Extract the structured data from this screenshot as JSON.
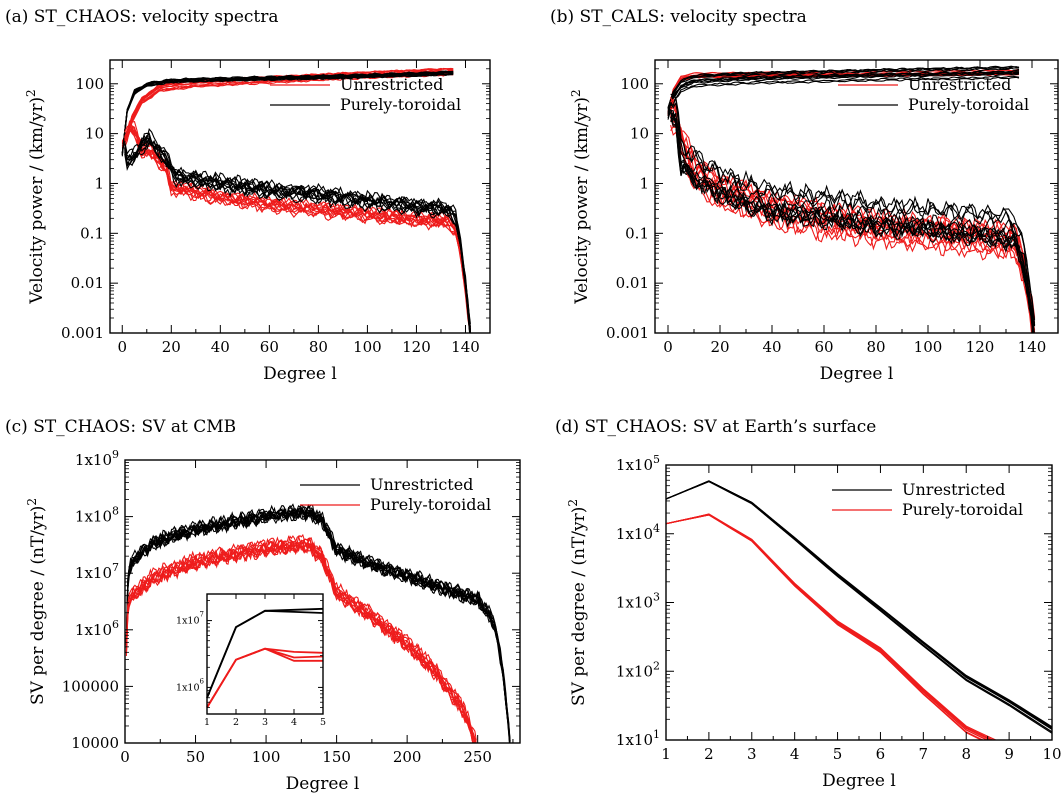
{
  "colors": {
    "black": "#000000",
    "red": "#ee1c1c"
  },
  "chart_data": [
    {
      "id": "a",
      "type": "line",
      "title": "(a) ST_CHAOS: velocity spectra",
      "xlabel": "Degree l",
      "ylabel": "Velocity power / (km/yr)",
      "ylabel_sup": "2",
      "xscale": "linear",
      "yscale": "log",
      "xlim": [
        -5,
        150
      ],
      "ylim": [
        0.001,
        300
      ],
      "xticks": [
        0,
        20,
        40,
        60,
        80,
        100,
        120,
        140
      ],
      "yticks": [
        0.001,
        0.01,
        0.1,
        1,
        10,
        100
      ],
      "ytick_labels": [
        "0.001",
        "0.01",
        "0.1",
        "1",
        "10",
        "100"
      ],
      "grid": false,
      "legend_position": "top-right",
      "legend": [
        {
          "label": "Unrestricted",
          "color": "red"
        },
        {
          "label": "Purely-toroidal",
          "color": "black"
        }
      ],
      "series": [
        {
          "group": "red",
          "count": 11,
          "spread": 0.07,
          "cumulative": [
            [
              0,
              6
            ],
            [
              2,
              9
            ],
            [
              4,
              20
            ],
            [
              8,
              45
            ],
            [
              15,
              80
            ],
            [
              30,
              100
            ],
            [
              60,
              120
            ],
            [
              100,
              150
            ],
            [
              135,
              175
            ]
          ],
          "noise": 0.02
        },
        {
          "group": "black",
          "count": 11,
          "spread": 0.05,
          "cumulative": [
            [
              0,
              4
            ],
            [
              2,
              30
            ],
            [
              5,
              70
            ],
            [
              10,
              100
            ],
            [
              20,
              118
            ],
            [
              40,
              128
            ],
            [
              80,
              140
            ],
            [
              120,
              160
            ],
            [
              135,
              172
            ]
          ],
          "noise": 0.02
        },
        {
          "group": "red",
          "count": 11,
          "spread": 0.12,
          "spectrum": [
            [
              1,
              8
            ],
            [
              3,
              14
            ],
            [
              5,
              12
            ],
            [
              8,
              5
            ],
            [
              12,
              4.5
            ],
            [
              18,
              2
            ],
            [
              20,
              0.9
            ],
            [
              40,
              0.55
            ],
            [
              60,
              0.4
            ],
            [
              80,
              0.32
            ],
            [
              100,
              0.25
            ],
            [
              120,
              0.2
            ],
            [
              133,
              0.18
            ],
            [
              136,
              0.12
            ],
            [
              138,
              0.04
            ],
            [
              140,
              0.008
            ],
            [
              142,
              0.001
            ]
          ],
          "noise": 0.12
        },
        {
          "group": "black",
          "count": 11,
          "spread": 0.1,
          "spectrum": [
            [
              1,
              5.5
            ],
            [
              2,
              2.8
            ],
            [
              5,
              3.5
            ],
            [
              8,
              6
            ],
            [
              11,
              8
            ],
            [
              14,
              5
            ],
            [
              18,
              3
            ],
            [
              22,
              1.4
            ],
            [
              40,
              1.0
            ],
            [
              60,
              0.75
            ],
            [
              80,
              0.6
            ],
            [
              100,
              0.45
            ],
            [
              120,
              0.35
            ],
            [
              133,
              0.3
            ],
            [
              136,
              0.2
            ],
            [
              138,
              0.06
            ],
            [
              140,
              0.01
            ],
            [
              142,
              0.001
            ]
          ],
          "noise": 0.14
        }
      ]
    },
    {
      "id": "b",
      "type": "line",
      "title": "(b) ST_CALS: velocity spectra",
      "xlabel": "Degree l",
      "ylabel": "Velocity power / (km/yr)",
      "ylabel_sup": "2",
      "xscale": "linear",
      "yscale": "log",
      "xlim": [
        -5,
        150
      ],
      "ylim": [
        0.001,
        300
      ],
      "xticks": [
        0,
        20,
        40,
        60,
        80,
        100,
        120,
        140
      ],
      "yticks": [
        0.001,
        0.01,
        0.1,
        1,
        10,
        100
      ],
      "ytick_labels": [
        "0.001",
        "0.01",
        "0.1",
        "1",
        "10",
        "100"
      ],
      "grid": false,
      "legend_position": "top-right",
      "legend": [
        {
          "label": "Unrestricted",
          "color": "red"
        },
        {
          "label": "Purely-toroidal",
          "color": "black"
        }
      ],
      "series": [
        {
          "group": "red",
          "count": 11,
          "spread": 0.05,
          "cumulative": [
            [
              0,
              25
            ],
            [
              2,
              70
            ],
            [
              5,
              130
            ],
            [
              10,
              150
            ],
            [
              40,
              155
            ],
            [
              80,
              160
            ],
            [
              135,
              172
            ]
          ],
          "noise": 0.015
        },
        {
          "group": "black",
          "count": 11,
          "spread": 0.12,
          "cumulative": [
            [
              0,
              25
            ],
            [
              2,
              55
            ],
            [
              5,
              90
            ],
            [
              10,
              115
            ],
            [
              30,
              130
            ],
            [
              80,
              150
            ],
            [
              135,
              170
            ]
          ],
          "noise": 0.02
        },
        {
          "group": "red",
          "count": 11,
          "spread": 0.25,
          "spectrum": [
            [
              1,
              25
            ],
            [
              3,
              20
            ],
            [
              6,
              5
            ],
            [
              10,
              1.8
            ],
            [
              20,
              0.7
            ],
            [
              40,
              0.3
            ],
            [
              60,
              0.18
            ],
            [
              80,
              0.13
            ],
            [
              100,
              0.1
            ],
            [
              120,
              0.08
            ],
            [
              133,
              0.07
            ],
            [
              136,
              0.03
            ],
            [
              138,
              0.01
            ],
            [
              140,
              0.002
            ],
            [
              141,
              0.001
            ]
          ],
          "noise": 0.2
        },
        {
          "group": "black",
          "count": 11,
          "spread": 0.3,
          "spectrum": [
            [
              1,
              35
            ],
            [
              3,
              30
            ],
            [
              5,
              4
            ],
            [
              10,
              2.2
            ],
            [
              20,
              1.0
            ],
            [
              40,
              0.45
            ],
            [
              60,
              0.35
            ],
            [
              80,
              0.25
            ],
            [
              100,
              0.2
            ],
            [
              120,
              0.15
            ],
            [
              133,
              0.13
            ],
            [
              136,
              0.05
            ],
            [
              138,
              0.015
            ],
            [
              140,
              0.003
            ],
            [
              141,
              0.001
            ]
          ],
          "noise": 0.22
        }
      ]
    },
    {
      "id": "c",
      "type": "line",
      "title": "(c) ST_CHAOS: SV at CMB",
      "xlabel": "Degree l",
      "ylabel": "SV per degree / (nT/yr)",
      "ylabel_sup": "2",
      "xscale": "linear",
      "yscale": "log",
      "xlim": [
        0,
        280
      ],
      "ylim": [
        10000,
        1000000000
      ],
      "xticks": [
        0,
        50,
        100,
        150,
        200,
        250
      ],
      "yticks": [
        10000,
        100000,
        1000000,
        10000000,
        100000000,
        1000000000
      ],
      "ytick_labels": [
        "10000",
        "100000",
        "1x10^6",
        "1x10^7",
        "1x10^8",
        "1x10^9"
      ],
      "grid": false,
      "legend_position": "top-right",
      "legend": [
        {
          "label": "Unrestricted",
          "color": "black"
        },
        {
          "label": "Purely-toroidal",
          "color": "red"
        }
      ],
      "series": [
        {
          "group": "black",
          "count": 11,
          "spread": 0.12,
          "spectrum": [
            [
              1,
              700000
            ],
            [
              2,
              8000000
            ],
            [
              3,
              14000000
            ],
            [
              8,
              22000000
            ],
            [
              20,
              40000000
            ],
            [
              50,
              70000000
            ],
            [
              100,
              120000000
            ],
            [
              130,
              140000000
            ],
            [
              140,
              100000000
            ],
            [
              150,
              30000000
            ],
            [
              180,
              15000000
            ],
            [
              220,
              7000000
            ],
            [
              250,
              4000000
            ],
            [
              262,
              1500000
            ],
            [
              268,
              200000
            ],
            [
              272,
              20000
            ],
            [
              273,
              10000
            ]
          ],
          "noise": 0.1
        },
        {
          "group": "red",
          "count": 11,
          "spread": 0.12,
          "spectrum": [
            [
              1,
              500000
            ],
            [
              2,
              2500000
            ],
            [
              3,
              3800000
            ],
            [
              8,
              5000000
            ],
            [
              20,
              9000000
            ],
            [
              50,
              17000000
            ],
            [
              100,
              30000000
            ],
            [
              130,
              35000000
            ],
            [
              140,
              20000000
            ],
            [
              150,
              5000000
            ],
            [
              180,
              1500000
            ],
            [
              200,
              600000
            ],
            [
              220,
              200000
            ],
            [
              240,
              40000
            ],
            [
              248,
              12000
            ],
            [
              249,
              10000
            ]
          ],
          "noise": 0.1
        }
      ],
      "inset": {
        "xlim": [
          1,
          5
        ],
        "ylim": [
          400000,
          25000000
        ],
        "xticks": [
          1,
          2,
          3,
          4,
          5
        ],
        "yticks": [
          1000000,
          10000000
        ],
        "ytick_labels": [
          "1x10^6",
          "1x10^7"
        ],
        "lines": [
          {
            "group": "black",
            "points": [
              [
                1,
                700000
              ],
              [
                2,
                8000000
              ],
              [
                3,
                14000000
              ],
              [
                4,
                14500000
              ],
              [
                5,
                15000000
              ]
            ]
          },
          {
            "group": "black",
            "points": [
              [
                1,
                700000
              ],
              [
                2,
                8000000
              ],
              [
                3,
                14000000
              ],
              [
                4,
                13500000
              ],
              [
                5,
                13000000
              ]
            ]
          },
          {
            "group": "red",
            "points": [
              [
                1,
                500000
              ],
              [
                2,
                2600000
              ],
              [
                3,
                3800000
              ],
              [
                4,
                3400000
              ],
              [
                5,
                3300000
              ]
            ]
          },
          {
            "group": "red",
            "points": [
              [
                1,
                500000
              ],
              [
                2,
                2600000
              ],
              [
                3,
                3800000
              ],
              [
                4,
                2800000
              ],
              [
                5,
                2900000
              ]
            ]
          },
          {
            "group": "red",
            "points": [
              [
                1,
                500000
              ],
              [
                2,
                2600000
              ],
              [
                3,
                3800000
              ],
              [
                4,
                2500000
              ],
              [
                5,
                2500000
              ]
            ]
          }
        ]
      }
    },
    {
      "id": "d",
      "type": "line",
      "title": "(d) ST_CHAOS: SV at Earth’s surface",
      "xlabel": "Degree l",
      "ylabel": "SV per degree / (nT/yr)",
      "ylabel_sup": "2",
      "xscale": "linear",
      "yscale": "log",
      "xlim": [
        1,
        10
      ],
      "ylim": [
        10,
        100000
      ],
      "xticks": [
        1,
        2,
        3,
        4,
        5,
        6,
        7,
        8,
        9,
        10
      ],
      "yticks": [
        10,
        100,
        1000,
        10000,
        100000
      ],
      "ytick_labels": [
        "1x10^1",
        "1x10^2",
        "1x10^3",
        "1x10^4",
        "1x10^5"
      ],
      "grid": false,
      "legend_position": "top-right",
      "legend": [
        {
          "label": "Unrestricted",
          "color": "black"
        },
        {
          "label": "Purely-toroidal",
          "color": "red"
        }
      ],
      "series": [
        {
          "group": "black",
          "count": 9,
          "spread": 0.05,
          "spectrum": [
            [
              1,
              32000
            ],
            [
              2,
              58000
            ],
            [
              3,
              28000
            ],
            [
              4,
              8500
            ],
            [
              5,
              2500
            ],
            [
              6,
              800
            ],
            [
              7,
              250
            ],
            [
              8,
              80
            ],
            [
              9,
              35
            ],
            [
              10,
              14
            ]
          ],
          "noise": 0
        },
        {
          "group": "red",
          "count": 9,
          "spread": 0.08,
          "spectrum": [
            [
              1,
              14000
            ],
            [
              2,
              19000
            ],
            [
              3,
              8000
            ],
            [
              4,
              1800
            ],
            [
              5,
              500
            ],
            [
              6,
              200
            ],
            [
              7,
              50
            ],
            [
              8,
              14
            ],
            [
              9,
              7
            ],
            [
              10,
              4
            ]
          ],
          "noise": 0
        }
      ]
    }
  ]
}
